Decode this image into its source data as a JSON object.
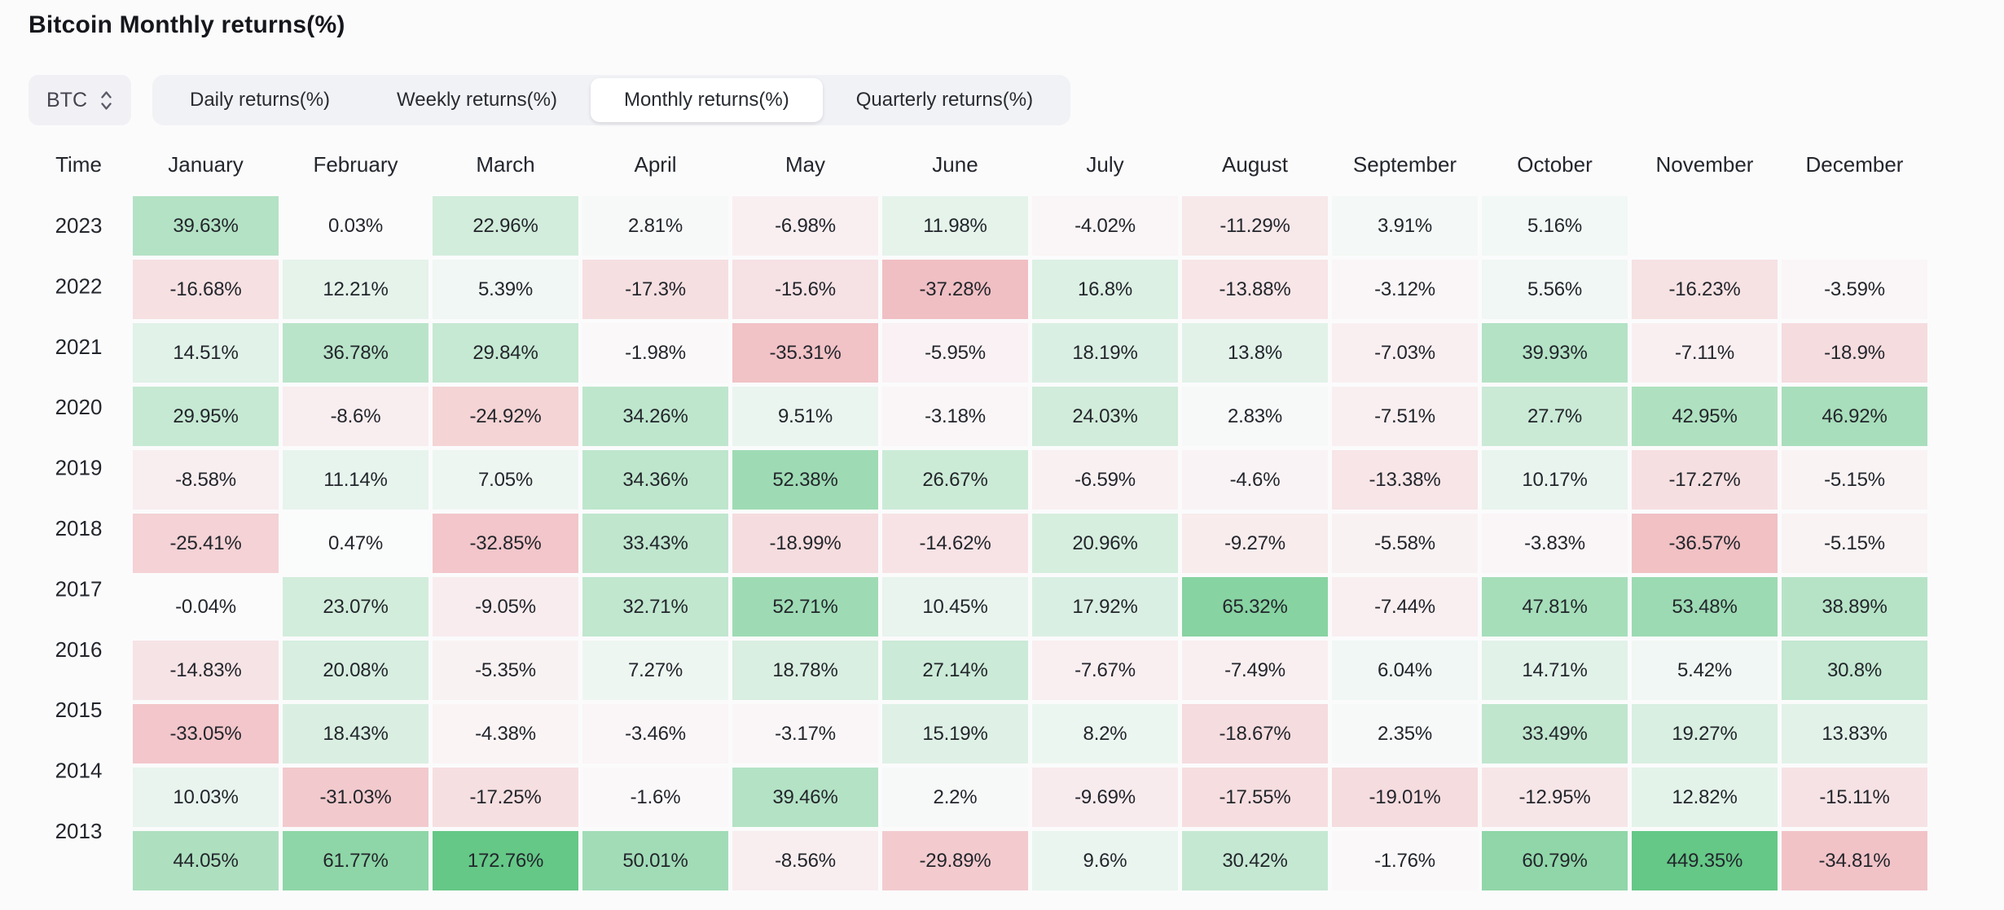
{
  "header": {
    "title": "Bitcoin Monthly returns(%)"
  },
  "controls": {
    "coin": "BTC",
    "coin_selector_icon": "chevron-updown-icon",
    "tabs": [
      "Daily returns(%)",
      "Weekly returns(%)",
      "Monthly returns(%)",
      "Quarterly returns(%)"
    ],
    "active_tab_index": 2
  },
  "chart_data": {
    "type": "heatmap",
    "title": "Bitcoin Monthly returns(%)",
    "unit": "%",
    "time_header": "Time",
    "columns": [
      "January",
      "February",
      "March",
      "April",
      "May",
      "June",
      "July",
      "August",
      "September",
      "October",
      "November",
      "December"
    ],
    "rows": [
      {
        "year": "2023",
        "values": [
          39.63,
          0.03,
          22.96,
          2.81,
          -6.98,
          11.98,
          -4.02,
          -11.29,
          3.91,
          5.16,
          null,
          null
        ]
      },
      {
        "year": "2022",
        "values": [
          -16.68,
          12.21,
          5.39,
          -17.3,
          -15.6,
          -37.28,
          16.8,
          -13.88,
          -3.12,
          5.56,
          -16.23,
          -3.59
        ]
      },
      {
        "year": "2021",
        "values": [
          14.51,
          36.78,
          29.84,
          -1.98,
          -35.31,
          -5.95,
          18.19,
          13.8,
          -7.03,
          39.93,
          -7.11,
          -18.9
        ]
      },
      {
        "year": "2020",
        "values": [
          29.95,
          -8.6,
          -24.92,
          34.26,
          9.51,
          -3.18,
          24.03,
          2.83,
          -7.51,
          27.7,
          42.95,
          46.92
        ]
      },
      {
        "year": "2019",
        "values": [
          -8.58,
          11.14,
          7.05,
          34.36,
          52.38,
          26.67,
          -6.59,
          -4.6,
          -13.38,
          10.17,
          -17.27,
          -5.15
        ]
      },
      {
        "year": "2018",
        "values": [
          -25.41,
          0.47,
          -32.85,
          33.43,
          -18.99,
          -14.62,
          20.96,
          -9.27,
          -5.58,
          -3.83,
          -36.57,
          -5.15
        ]
      },
      {
        "year": "2017",
        "values": [
          -0.04,
          23.07,
          -9.05,
          32.71,
          52.71,
          10.45,
          17.92,
          65.32,
          -7.44,
          47.81,
          53.48,
          38.89
        ]
      },
      {
        "year": "2016",
        "values": [
          -14.83,
          20.08,
          -5.35,
          7.27,
          18.78,
          27.14,
          -7.67,
          -7.49,
          6.04,
          14.71,
          5.42,
          30.8
        ]
      },
      {
        "year": "2015",
        "values": [
          -33.05,
          18.43,
          -4.38,
          -3.46,
          -3.17,
          15.19,
          8.2,
          -18.67,
          2.35,
          33.49,
          19.27,
          13.83
        ]
      },
      {
        "year": "2014",
        "values": [
          10.03,
          -31.03,
          -17.25,
          -1.6,
          39.46,
          2.2,
          -9.69,
          -17.55,
          -19.01,
          -12.95,
          12.82,
          -15.11
        ]
      },
      {
        "year": "2013",
        "values": [
          44.05,
          61.77,
          172.76,
          50.01,
          -8.56,
          -29.89,
          9.6,
          30.42,
          -1.76,
          60.79,
          449.35,
          -34.81
        ]
      }
    ],
    "color_scale": {
      "positive_rgb": "74,190,114",
      "negative_rgb": "224,92,99",
      "alpha_per_percent": 0.01,
      "alpha_cap": 0.85
    }
  }
}
